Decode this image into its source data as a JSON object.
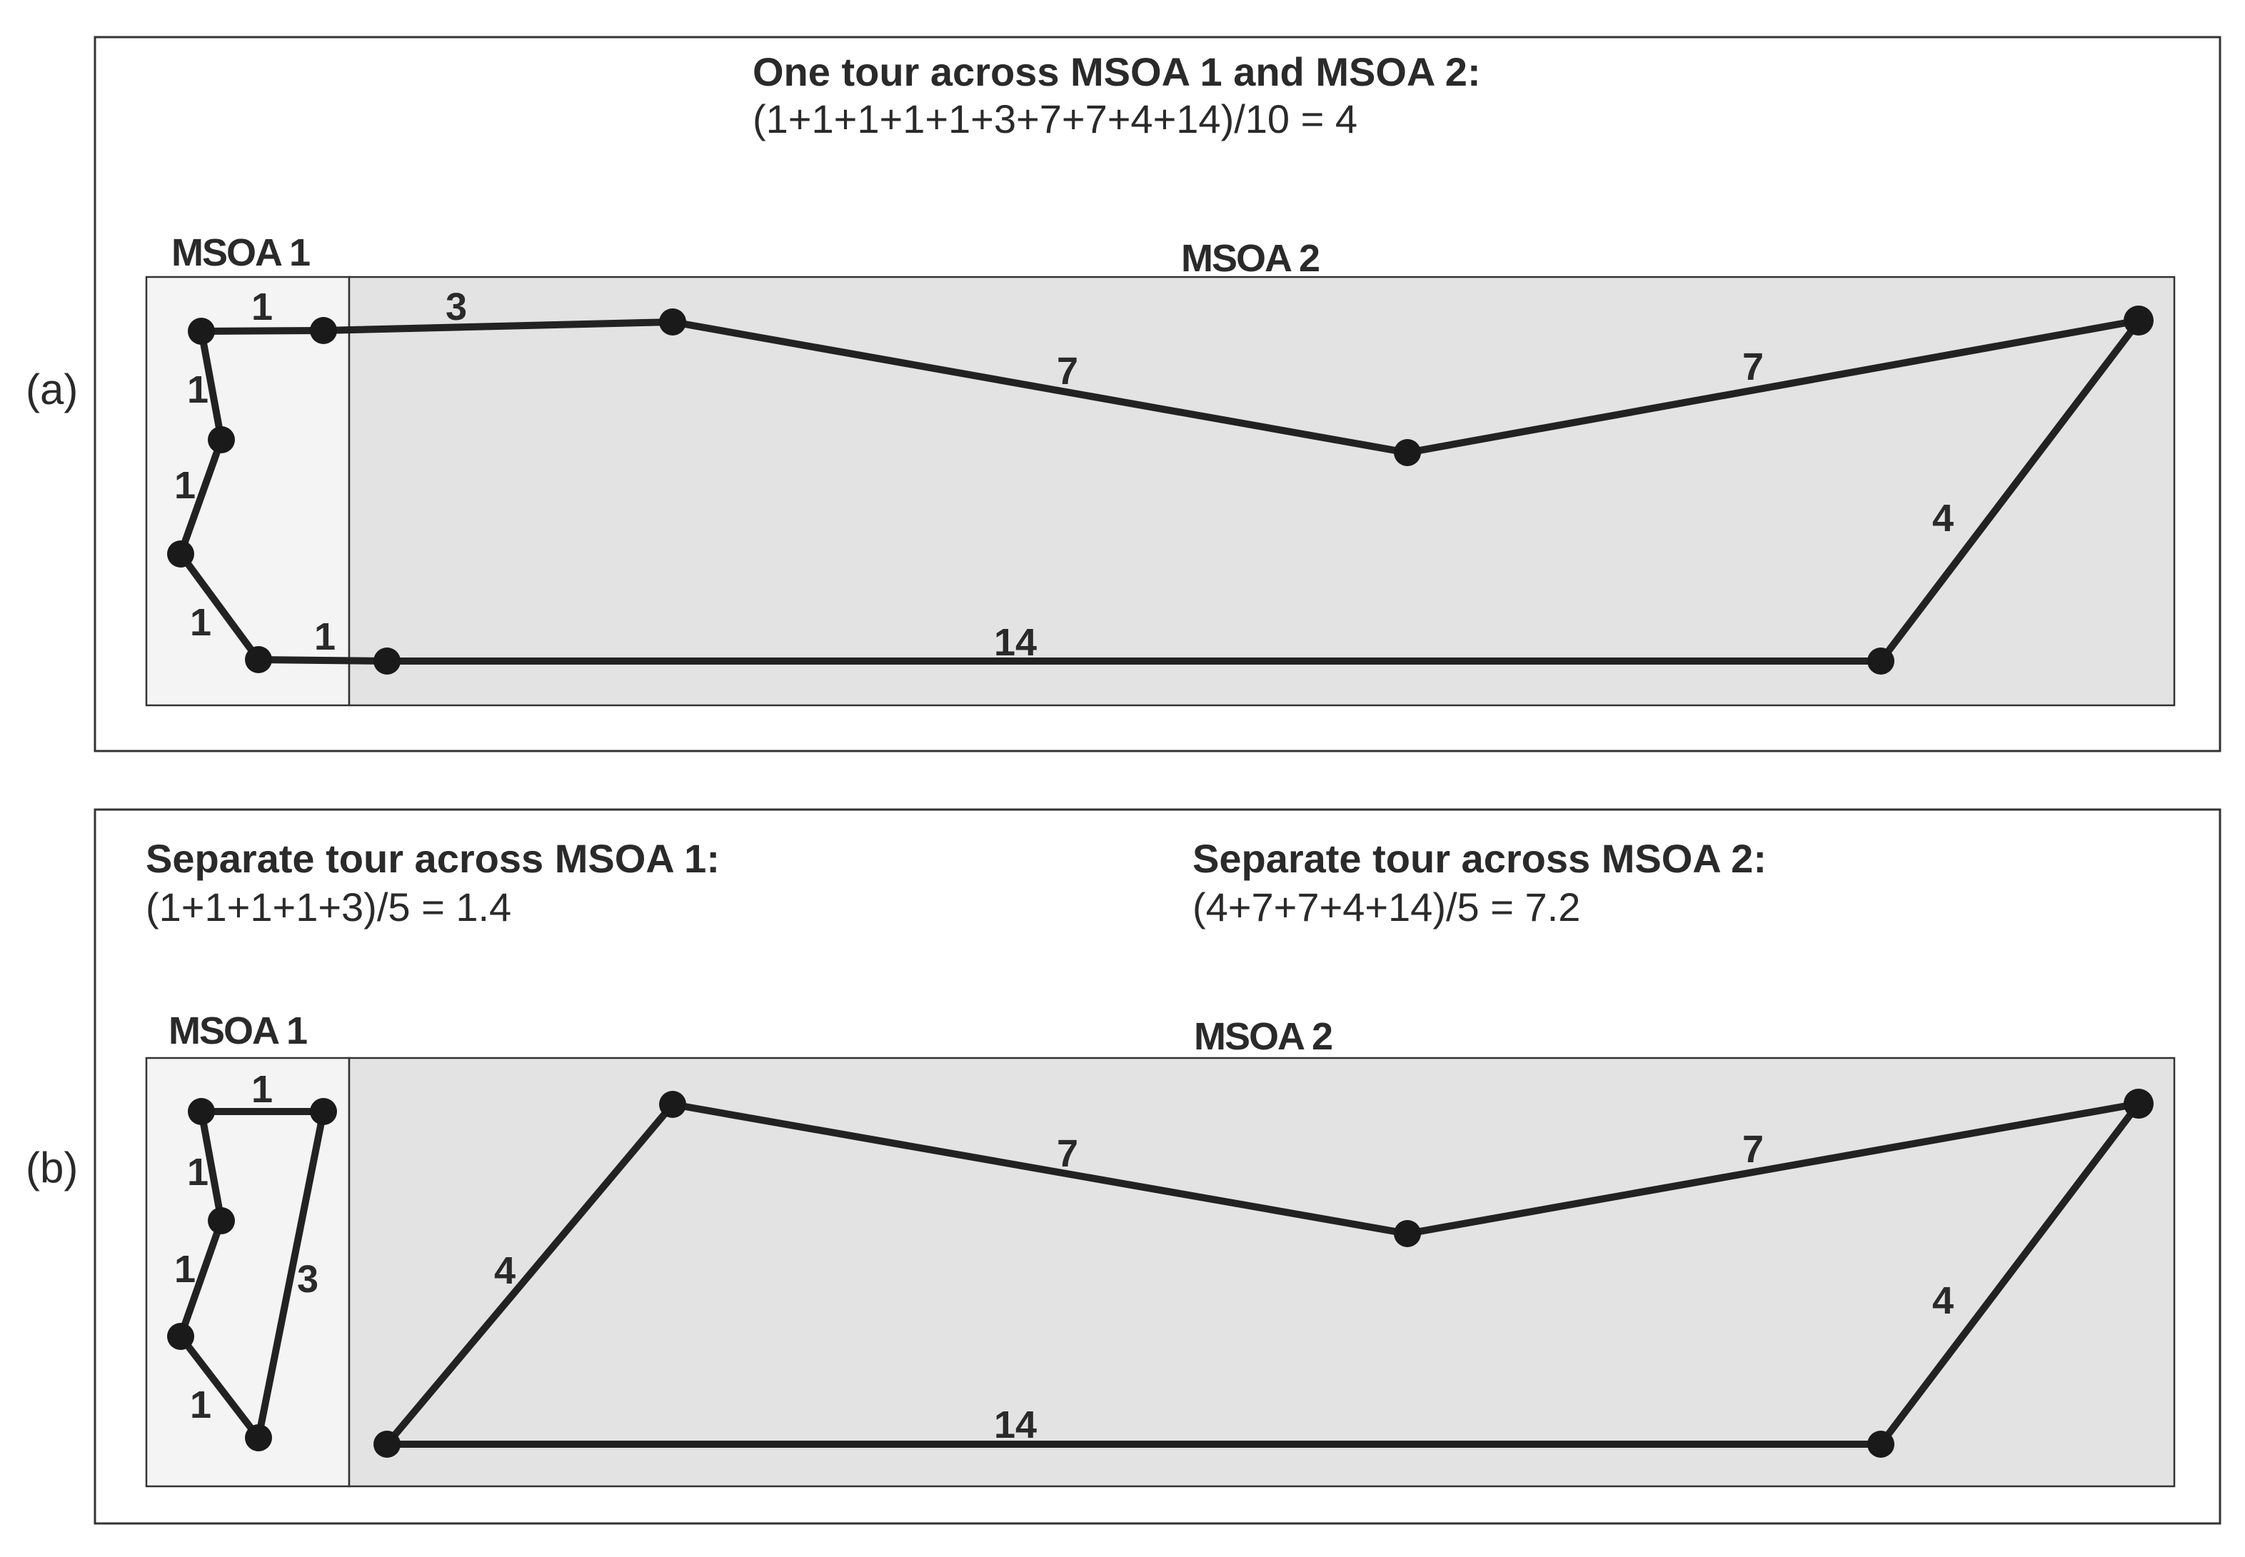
{
  "panels": {
    "a": {
      "tag": "(a)",
      "title": "One tour across MSOA 1 and MSOA 2:",
      "formula": "(1+1+1+1+1+3+7+7+4+14)/10 = 4",
      "region1_label": "MSOA 1",
      "region2_label": "MSOA 2",
      "edge_labels": [
        "1",
        "1",
        "1",
        "1",
        "1",
        "3",
        "7",
        "7",
        "4",
        "14"
      ]
    },
    "b": {
      "tag": "(b)",
      "title1": "Separate tour across MSOA 1:",
      "formula1": "(1+1+1+1+3)/5 = 1.4",
      "title2": "Separate tour across MSOA 2:",
      "formula2": "(4+7+7+4+14)/5 = 7.2",
      "region1_label": "MSOA 1",
      "region2_label": "MSOA 2",
      "edge_labels": [
        "1",
        "1",
        "1",
        "1",
        "3",
        "4",
        "7",
        "7",
        "4",
        "14"
      ]
    }
  }
}
